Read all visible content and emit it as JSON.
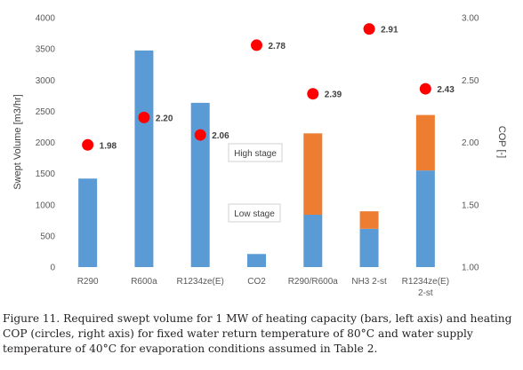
{
  "chart_data": {
    "type": "bar",
    "categories": [
      "R290",
      "R600a",
      "R1234ze(E)",
      "CO2",
      "R290/R600a",
      "NH3 2-st",
      "R1234ze(E)\n2-st"
    ],
    "series": [
      {
        "name": "Low stage",
        "color": "#5b9bd5",
        "values": [
          1420,
          3475,
          2635,
          210,
          840,
          615,
          1550
        ]
      },
      {
        "name": "High stage",
        "color": "#ed7d31",
        "values": [
          0,
          0,
          0,
          0,
          1305,
          280,
          890
        ]
      }
    ],
    "cop": {
      "color": "#ff0000",
      "values": [
        1.98,
        2.2,
        2.06,
        2.78,
        2.39,
        2.91,
        2.43
      ],
      "labels": [
        "1.98",
        "2.20",
        "2.06",
        "2.78",
        "2.39",
        "2.91",
        "2.43"
      ]
    },
    "ylabel": "Swept Volume [m3/hr]",
    "y2label": "COP [-]",
    "ylim": [
      0,
      4000
    ],
    "y2lim": [
      1.0,
      3.0
    ],
    "yticks": [
      "0",
      "500",
      "1000",
      "1500",
      "2000",
      "2500",
      "3000",
      "3500",
      "4000"
    ],
    "y2ticks": [
      "1.00",
      "1.50",
      "2.00",
      "2.50",
      "3.00"
    ],
    "annotations": [
      "High stage",
      "Low stage"
    ],
    "grid": false
  },
  "caption": "Figure 11. Required swept volume for 1 MW of heating capacity (bars, left axis) and heating COP (circles, right axis) for fixed water return temperature of 80°C and water supply temperature of 40°C for evaporation conditions assumed in Table 2."
}
